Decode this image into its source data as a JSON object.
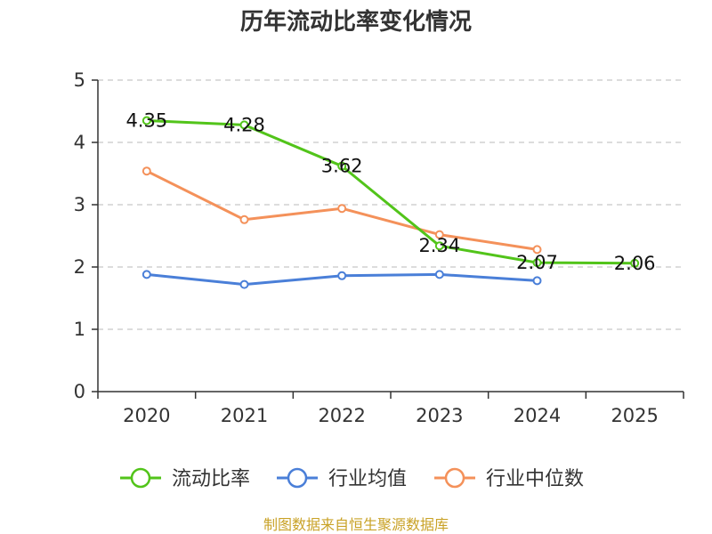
{
  "chart_data": {
    "type": "line",
    "title": "历年流动比率变化情况",
    "categories": [
      "2020",
      "2021",
      "2022",
      "2023",
      "2024",
      "2025"
    ],
    "y_ticks": [
      "0",
      "1",
      "2",
      "3",
      "4",
      "5"
    ],
    "ylim": [
      0,
      5
    ],
    "grid": true,
    "legend_position": "bottom",
    "series": [
      {
        "name": "流动比率",
        "color": "#52c41a",
        "values": [
          4.35,
          4.28,
          3.62,
          2.34,
          2.07,
          2.06
        ],
        "labels": [
          "4.35",
          "4.28",
          "3.62",
          "2.34",
          "2.07",
          "2.06"
        ]
      },
      {
        "name": "行业均值",
        "color": "#4a7fd8",
        "values": [
          1.88,
          1.72,
          1.86,
          1.88,
          1.78,
          null
        ]
      },
      {
        "name": "行业中位数",
        "color": "#f4915a",
        "values": [
          3.54,
          2.76,
          2.94,
          2.52,
          2.28,
          null
        ]
      }
    ]
  },
  "source": "制图数据来自恒生聚源数据库"
}
